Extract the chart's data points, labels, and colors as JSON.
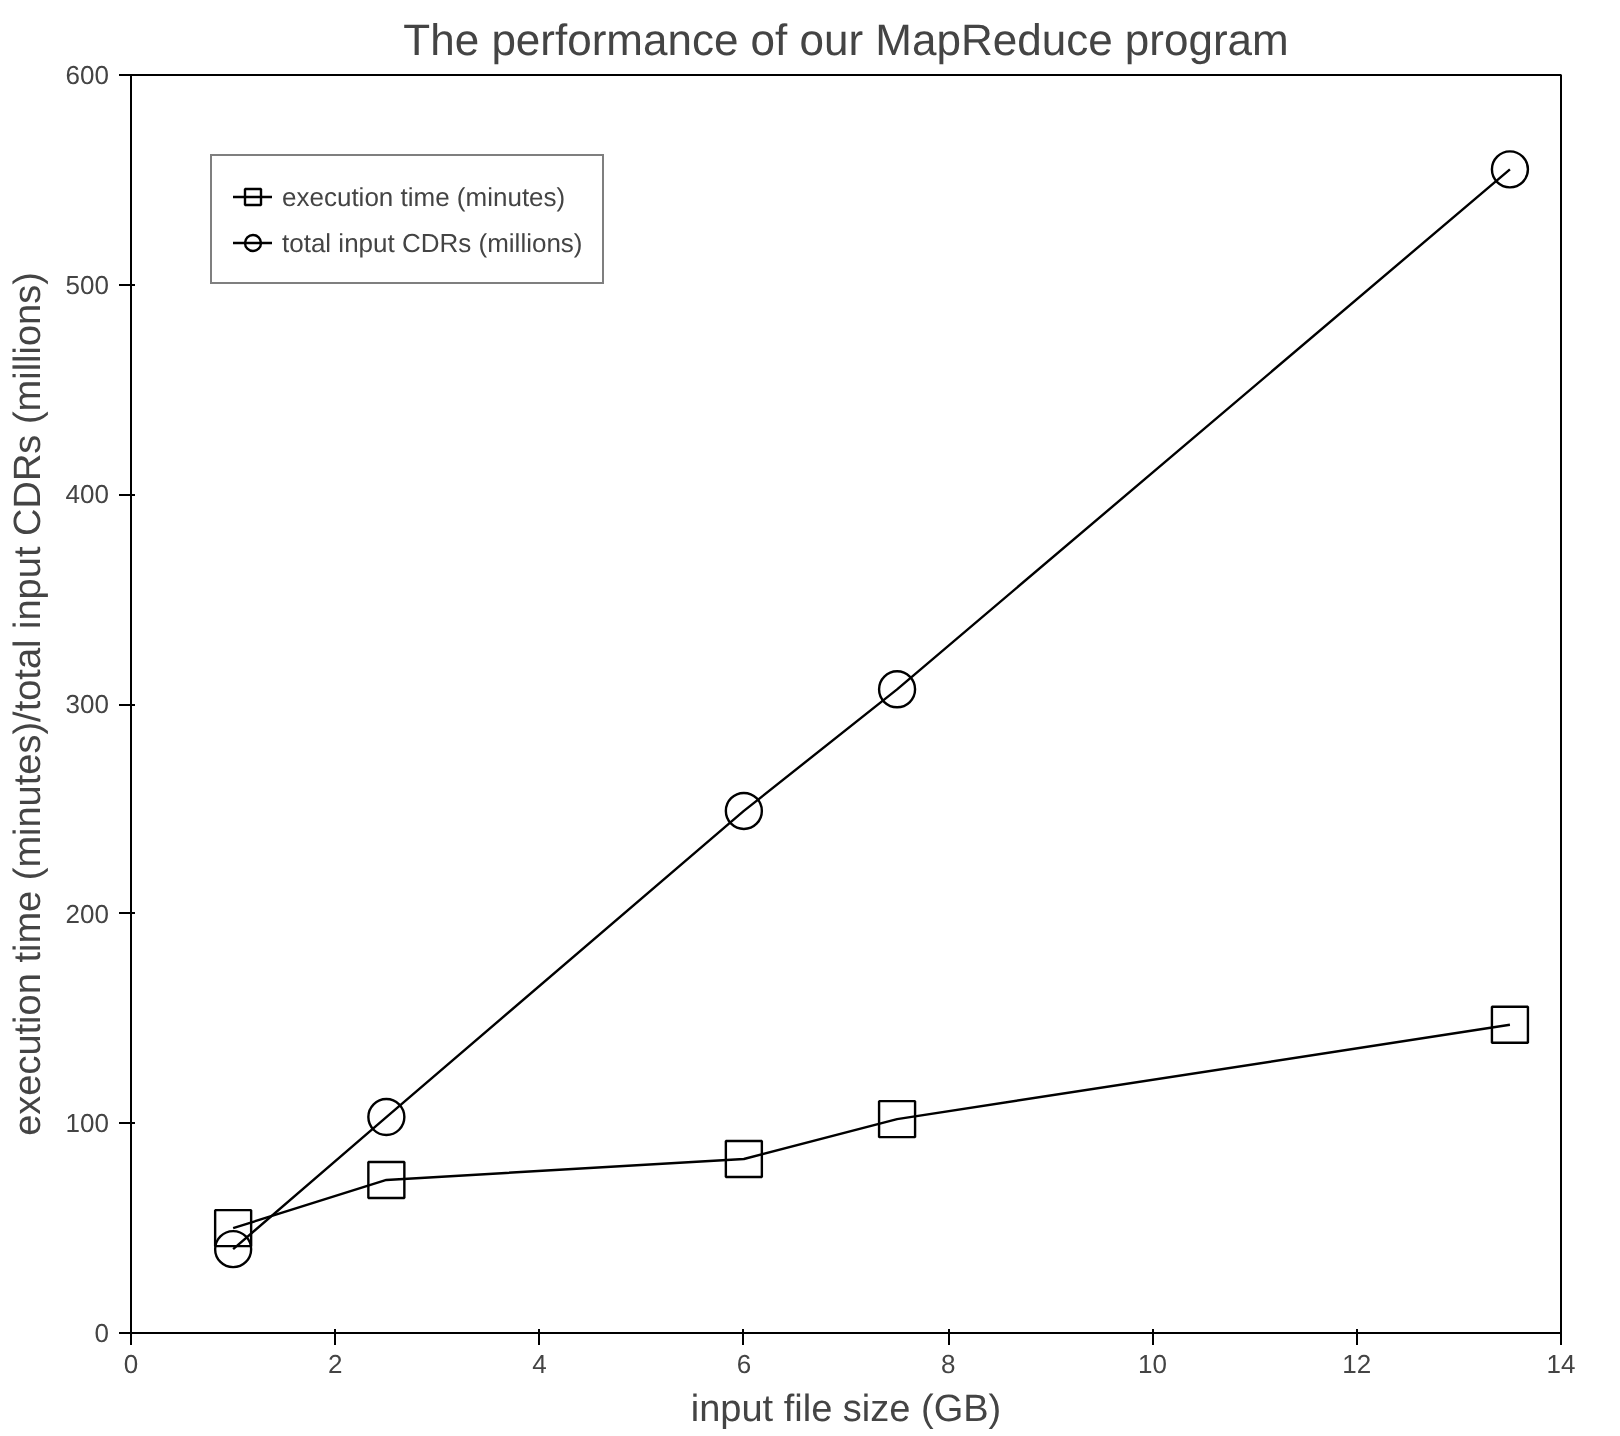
{
  "chart_data": {
    "type": "line",
    "title": "The performance of our MapReduce program",
    "xlabel": "input file size (GB)",
    "ylabel": "execution time (minutes)/total input CDRs (millions)",
    "x": [
      1,
      2.5,
      6,
      7.5,
      13.5
    ],
    "series": [
      {
        "name": "execution time (minutes)",
        "color": "#000000",
        "marker": "square",
        "values": [
          50,
          73,
          83,
          102,
          147
        ]
      },
      {
        "name": "total input CDRs (millions)",
        "color": "#000000",
        "marker": "circle",
        "values": [
          40,
          103,
          249,
          307,
          555
        ]
      }
    ],
    "xlim": [
      0,
      14
    ],
    "ylim": [
      0,
      600
    ],
    "xticks": [
      0,
      2,
      4,
      6,
      8,
      10,
      12,
      14
    ],
    "yticks": [
      0,
      100,
      200,
      300,
      400,
      500,
      600
    ],
    "grid": false,
    "legend": "top left",
    "line_style": "solid"
  }
}
